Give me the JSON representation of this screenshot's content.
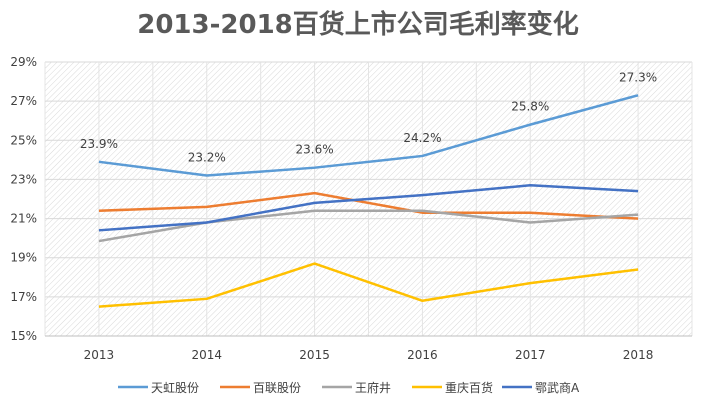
{
  "chart_data": {
    "type": "line",
    "title": "2013-2018百货上市公司毛利率变化",
    "xlabel": "",
    "ylabel": "",
    "categories": [
      "2013",
      "2014",
      "2015",
      "2016",
      "2017",
      "2018"
    ],
    "ylim": [
      15,
      29
    ],
    "yticks": [
      "15%",
      "17%",
      "19%",
      "21%",
      "23%",
      "25%",
      "27%",
      "29%"
    ],
    "grid": true,
    "legend": "bottom",
    "series": [
      {
        "name": "天虹股份",
        "color": "#5B9BD5",
        "values": [
          23.9,
          23.2,
          23.6,
          24.2,
          25.8,
          27.3
        ],
        "labels": [
          "23.9%",
          "23.2%",
          "23.6%",
          "24.2%",
          "25.8%",
          "27.3%"
        ]
      },
      {
        "name": "百联股份",
        "color": "#ED7D31",
        "values": [
          21.4,
          21.6,
          22.3,
          21.3,
          21.3,
          21.0
        ]
      },
      {
        "name": "王府井",
        "color": "#A5A5A5",
        "values": [
          19.85,
          20.8,
          21.4,
          21.4,
          20.8,
          21.2
        ]
      },
      {
        "name": "重庆百货",
        "color": "#FFC000",
        "values": [
          16.5,
          16.9,
          18.7,
          16.8,
          17.7,
          18.4
        ]
      },
      {
        "name": "鄂武商A",
        "color": "#4472C4",
        "values": [
          20.4,
          20.8,
          21.8,
          22.2,
          22.7,
          22.4
        ]
      }
    ]
  }
}
